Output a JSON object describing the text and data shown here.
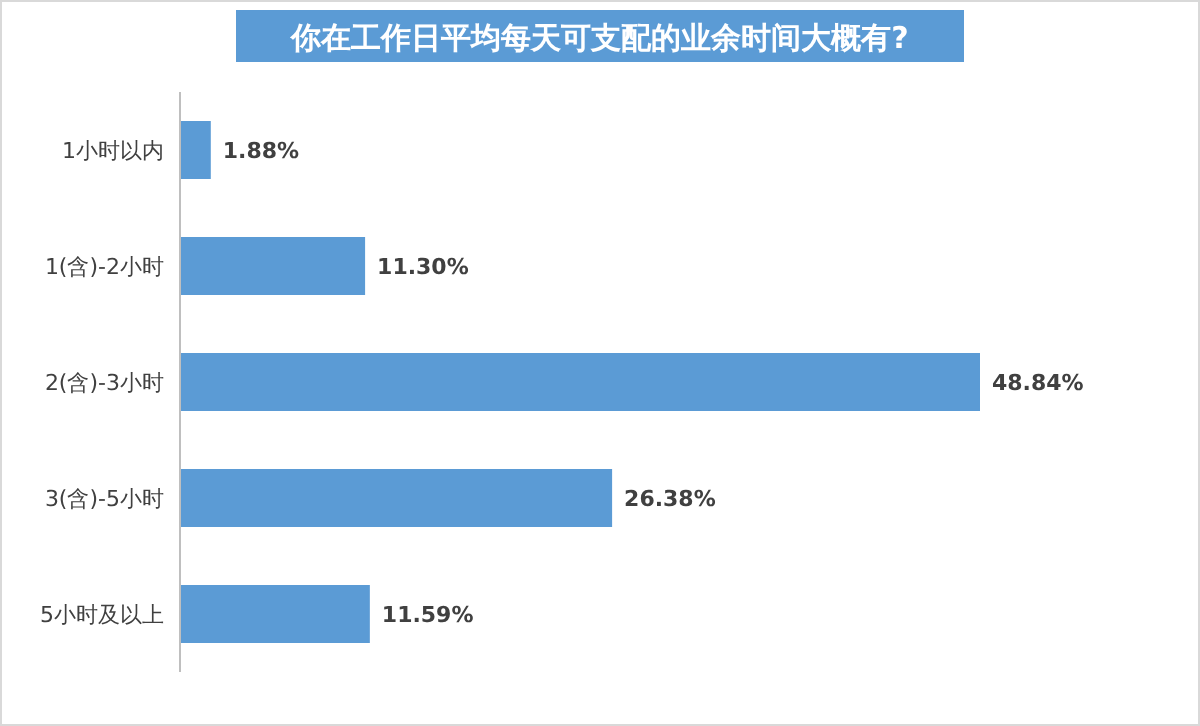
{
  "chart_data": {
    "type": "bar",
    "orientation": "horizontal",
    "title": "你在工作日平均每天可支配的业余时间大概有?",
    "categories": [
      "1小时以内",
      "1(含)-2小时",
      "2(含)-3小时",
      "3(含)-5小时",
      "5小时及以上"
    ],
    "values": [
      1.88,
      11.3,
      48.84,
      26.38,
      11.59
    ],
    "value_labels": [
      "1.88%",
      "11.30%",
      "48.84%",
      "26.38%",
      "11.59%"
    ],
    "color": "#5b9bd5"
  }
}
